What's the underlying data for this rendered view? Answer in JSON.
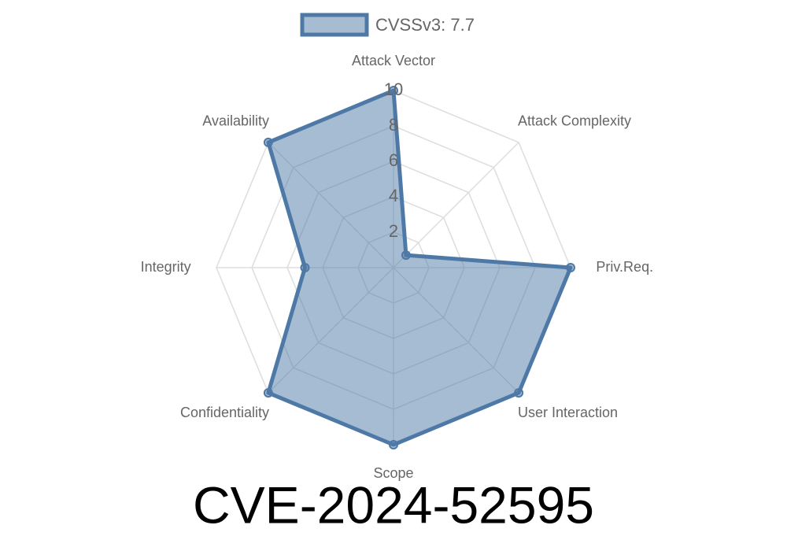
{
  "chart_data": {
    "type": "radar",
    "title": "CVE-2024-52595",
    "categories": [
      "Attack Vector",
      "Attack Complexity",
      "Priv.Req.",
      "User Interaction",
      "Scope",
      "Confidentiality",
      "Integrity",
      "Availability"
    ],
    "series": [
      {
        "name": "CVSSv3: 7.7",
        "color": "#4e79a7",
        "values": [
          10,
          1,
          10,
          10,
          10,
          10,
          5,
          10
        ]
      }
    ],
    "ylim": [
      0,
      10
    ],
    "yticks": [
      2,
      4,
      6,
      8,
      10
    ],
    "grid": true,
    "legend": "top"
  }
}
